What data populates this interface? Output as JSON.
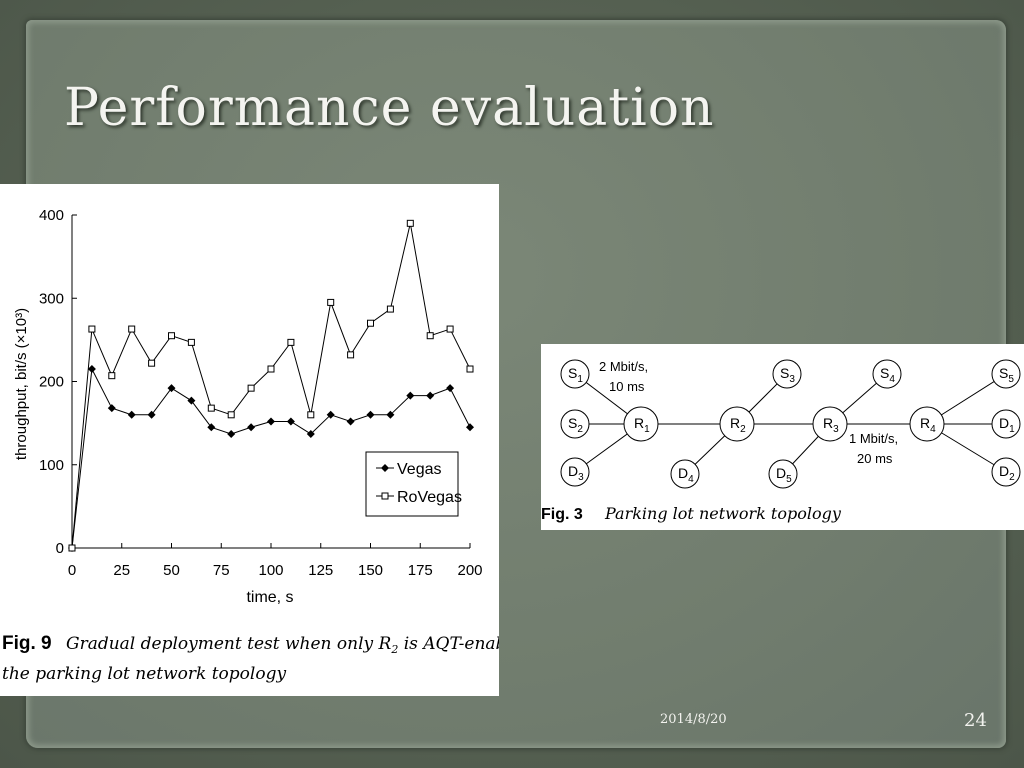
{
  "slide": {
    "title": "Performance  evaluation",
    "date": "2014/8/20",
    "page_number": "24"
  },
  "chart_data": {
    "type": "line",
    "ylabel": "throughput, bit/s (×10³)",
    "xlabel": "time, s",
    "xlim": [
      0,
      200
    ],
    "ylim": [
      0,
      400
    ],
    "x_ticks": [
      "0",
      "25",
      "50",
      "75",
      "100",
      "125",
      "150",
      "175",
      "200"
    ],
    "y_ticks": [
      "0",
      "100",
      "200",
      "300",
      "400"
    ],
    "x": [
      0,
      10,
      20,
      30,
      40,
      50,
      60,
      70,
      80,
      90,
      100,
      110,
      120,
      130,
      140,
      150,
      160,
      170,
      180,
      190,
      200
    ],
    "series": [
      {
        "name": "Vegas",
        "marker": "diamond",
        "values": [
          0,
          215,
          168,
          160,
          160,
          192,
          177,
          145,
          137,
          145,
          152,
          152,
          137,
          160,
          152,
          160,
          160,
          183,
          183,
          192,
          145
        ]
      },
      {
        "name": "RoVegas",
        "marker": "square",
        "values": [
          0,
          263,
          207,
          263,
          222,
          255,
          247,
          168,
          160,
          192,
          215,
          247,
          160,
          295,
          232,
          270,
          287,
          390,
          255,
          263,
          215
        ]
      }
    ],
    "legend": "lower-right",
    "grid": false,
    "caption_label": "Fig. 9",
    "caption_text": "Gradual deployment test when only R",
    "caption_sub": "2",
    "caption_text2": " is AQT-enabled in",
    "caption_line2": "the parking lot network topology"
  },
  "diagram": {
    "caption_label": "Fig. 3",
    "caption_text": "Parking lot network topology",
    "link1_label": "2 Mbit/s,",
    "link1_delay": "10 ms",
    "link2_label": "1 Mbit/s,",
    "link2_delay": "20 ms",
    "nodes": [
      {
        "id": "S1",
        "base": "S",
        "sub": "1"
      },
      {
        "id": "S2",
        "base": "S",
        "sub": "2"
      },
      {
        "id": "D3",
        "base": "D",
        "sub": "3"
      },
      {
        "id": "R1",
        "base": "R",
        "sub": "1"
      },
      {
        "id": "R2",
        "base": "R",
        "sub": "2"
      },
      {
        "id": "R3",
        "base": "R",
        "sub": "3"
      },
      {
        "id": "R4",
        "base": "R",
        "sub": "4"
      },
      {
        "id": "S3",
        "base": "S",
        "sub": "3"
      },
      {
        "id": "D4",
        "base": "D",
        "sub": "4"
      },
      {
        "id": "S4",
        "base": "S",
        "sub": "4"
      },
      {
        "id": "D5",
        "base": "D",
        "sub": "5"
      },
      {
        "id": "S5",
        "base": "S",
        "sub": "5"
      },
      {
        "id": "D1",
        "base": "D",
        "sub": "1"
      },
      {
        "id": "D2",
        "base": "D",
        "sub": "2"
      }
    ]
  }
}
